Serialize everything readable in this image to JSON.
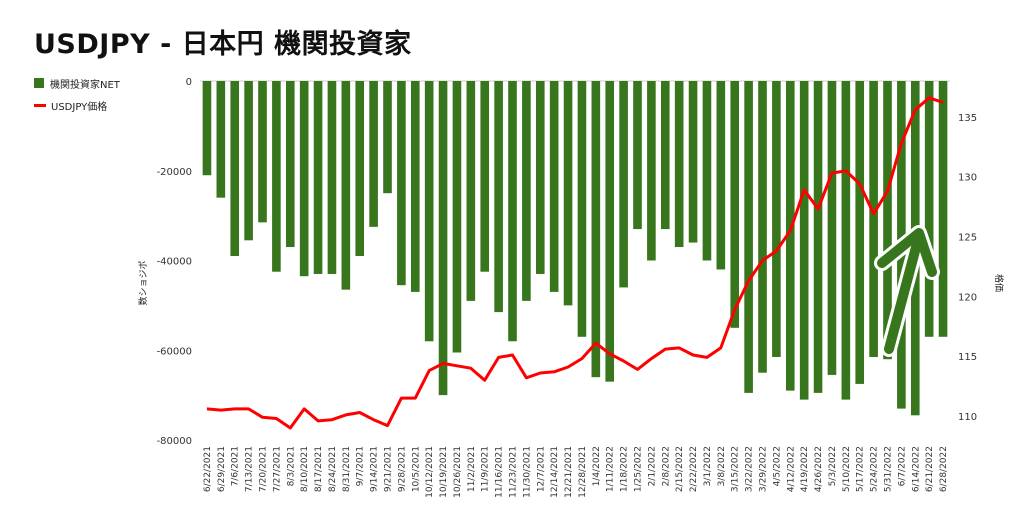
{
  "chart_data": {
    "type": "bar",
    "title": "USDJPY - 日本円 機関投資家",
    "ylabel": "数ショジポ",
    "y2label": "格価",
    "ylim": [
      -80000,
      0
    ],
    "y2lim": [
      108,
      138
    ],
    "yticks": [
      "0",
      "-20000",
      "-40000",
      "-60000",
      "-80000"
    ],
    "y2ticks": [
      "110",
      "115",
      "120",
      "125",
      "130",
      "135"
    ],
    "legend_position": "top-left",
    "categories": [
      "6/22/2021",
      "6/29/2021",
      "7/6/2021",
      "7/13/2021",
      "7/20/2021",
      "7/27/2021",
      "8/3/2021",
      "8/10/2021",
      "8/17/2021",
      "8/24/2021",
      "8/31/2021",
      "9/7/2021",
      "9/14/2021",
      "9/21/2021",
      "9/28/2021",
      "10/5/2021",
      "10/12/2021",
      "10/19/2021",
      "10/26/2021",
      "11/2/2021",
      "11/9/2021",
      "11/16/2021",
      "11/23/2021",
      "11/30/2021",
      "12/7/2021",
      "12/14/2021",
      "12/21/2021",
      "12/28/2021",
      "1/4/2022",
      "1/11/2022",
      "1/18/2022",
      "1/25/2022",
      "2/1/2022",
      "2/8/2022",
      "2/15/2022",
      "2/22/2022",
      "3/1/2022",
      "3/8/2022",
      "3/15/2022",
      "3/22/2022",
      "3/29/2022",
      "4/5/2022",
      "4/12/2022",
      "4/19/2022",
      "4/26/2022",
      "5/3/2022",
      "5/10/2022",
      "5/17/2022",
      "5/24/2022",
      "5/31/2022",
      "6/7/2022",
      "6/14/2022",
      "6/21/2022",
      "6/28/2022"
    ],
    "series": [
      {
        "name": "機関投資家NET",
        "type": "bar",
        "axis": "left",
        "color": "#38761d",
        "values": [
          -21000,
          -26000,
          -39000,
          -35500,
          -31500,
          -42500,
          -37000,
          -43500,
          -43000,
          -43000,
          -46500,
          -39000,
          -32500,
          -25000,
          -45500,
          -47000,
          -58000,
          -70000,
          -60500,
          -49000,
          -42500,
          -51500,
          -58000,
          -49000,
          -43000,
          -47000,
          -50000,
          -57000,
          -66000,
          -67000,
          -46000,
          -33000,
          -40000,
          -33000,
          -37000,
          -36000,
          -40000,
          -42000,
          -55000,
          -69500,
          -65000,
          -61500,
          -69000,
          -71000,
          -69500,
          -65500,
          -71000,
          -67500,
          -61500,
          -62000,
          -73000,
          -74500,
          -57000,
          -57000
        ]
      },
      {
        "name": "USDJPY価格",
        "type": "line",
        "axis": "right",
        "color": "#ff0000",
        "values": [
          110.6,
          110.5,
          110.6,
          110.6,
          109.9,
          109.8,
          109.0,
          110.6,
          109.6,
          109.7,
          110.1,
          110.3,
          109.7,
          109.2,
          111.5,
          111.5,
          113.8,
          114.4,
          114.2,
          114.0,
          113.0,
          114.9,
          115.1,
          113.2,
          113.6,
          113.7,
          114.1,
          114.8,
          116.1,
          115.2,
          114.6,
          113.9,
          114.8,
          115.6,
          115.7,
          115.1,
          114.9,
          115.7,
          118.9,
          121.3,
          123.0,
          123.8,
          125.5,
          128.9,
          127.3,
          130.3,
          130.5,
          129.4,
          126.9,
          128.8,
          132.8,
          135.6,
          136.6,
          136.2
        ]
      }
    ],
    "annotation": "green-up-arrow"
  }
}
